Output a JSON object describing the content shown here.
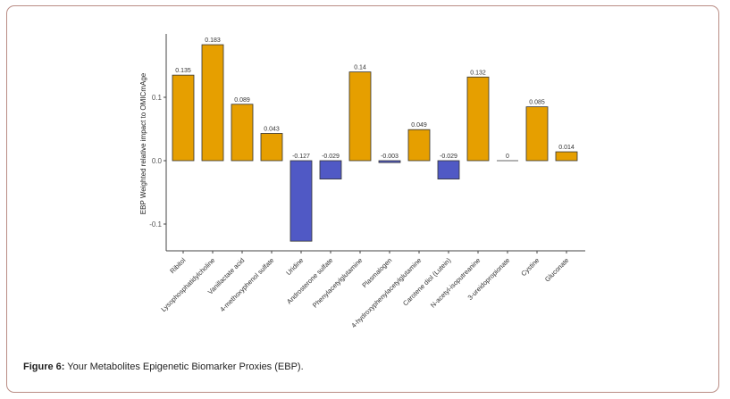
{
  "caption": {
    "prefix": "Figure 6:",
    "text": " Your Metabolites Epigenetic Biomarker Proxies (EBP)."
  },
  "colors": {
    "positive": "#E69F00",
    "negative": "#5059C5",
    "zero": "#999999",
    "frame": "#b98c84"
  },
  "chart_data": {
    "type": "bar",
    "title": "",
    "xlabel": "",
    "ylabel": "EBP Weighted relative impact to OMICmAge",
    "ylim": [
      -0.14,
      0.19
    ],
    "yticks": [
      -0.1,
      0.0,
      0.1
    ],
    "ytick_labels": [
      "-0.1",
      "0.0",
      "0.1"
    ],
    "grid": false,
    "legend": "none",
    "categories": [
      "Ribitol",
      "Lysophosphatidylcholine",
      "Vanillactate acid",
      "4-methoxyphenol sulfate",
      "Uridine",
      "Androsterone sulfate",
      "Phenylacetylglutamine",
      "Plasmalogen",
      "4-hydroxyphenylacetylglutamine",
      "Carotene diol (Lutein)",
      "N-acetyl-isoputreanine",
      "3-ureidopropionate",
      "Cystine",
      "Gluconate"
    ],
    "values": [
      0.135,
      0.183,
      0.089,
      0.043,
      -0.127,
      -0.029,
      0.14,
      -0.003,
      0.049,
      -0.029,
      0.132,
      0,
      0.085,
      0.014
    ],
    "value_labels": [
      "0.135",
      "0.183",
      "0.089",
      "0.043",
      "-0.127",
      "-0.029",
      "0.14",
      "-0.003",
      "0.049",
      "-0.029",
      "0.132",
      "0",
      "0.085",
      "0.014"
    ]
  }
}
